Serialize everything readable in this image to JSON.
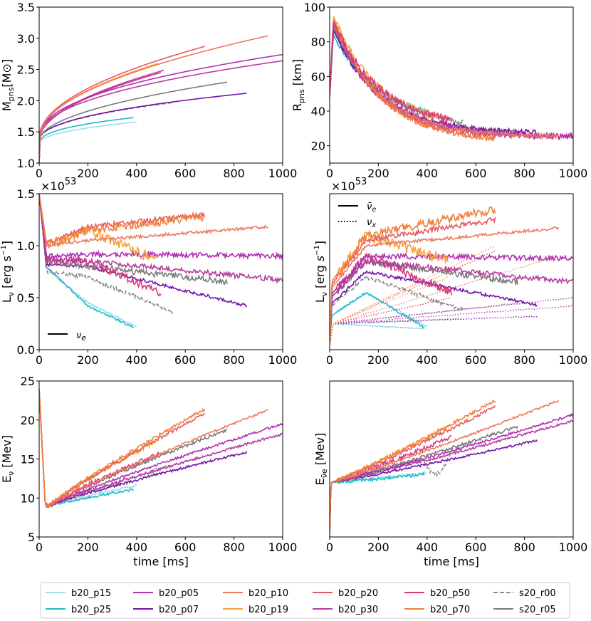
{
  "figure": {
    "palette": {
      "b20_p15": "#9fdcef",
      "b20_p25": "#1cbcc8",
      "b20_p05": "#b02fb2",
      "b20_p07": "#7312a8",
      "b20_p10": "#ee7a5e",
      "b20_p19": "#f6a33c",
      "b20_p20": "#e35b62",
      "b20_p30": "#b43da0",
      "b20_p50": "#d9367e",
      "b20_p70": "#f0803c",
      "s20_r00": "#8a8a8a",
      "s20_r05": "#7a7a7a"
    },
    "legend_entries": [
      {
        "label": "b20_p15",
        "style": "solid"
      },
      {
        "label": "b20_p25",
        "style": "solid"
      },
      {
        "label": "b20_p05",
        "style": "solid"
      },
      {
        "label": "b20_p07",
        "style": "solid"
      },
      {
        "label": "b20_p10",
        "style": "solid"
      },
      {
        "label": "b20_p19",
        "style": "solid"
      },
      {
        "label": "b20_p20",
        "style": "solid"
      },
      {
        "label": "b20_p30",
        "style": "solid"
      },
      {
        "label": "b20_p50",
        "style": "solid"
      },
      {
        "label": "b20_p70",
        "style": "solid"
      },
      {
        "label": "s20_r00",
        "style": "dashed"
      },
      {
        "label": "s20_r05",
        "style": "solid"
      }
    ]
  },
  "chart_data": [
    {
      "id": "mpns",
      "type": "line",
      "ylabel_main": "M",
      "ylabel_sub": "pns",
      "ylabel_tail": "[M",
      "ylabel_sym": "⊙",
      "ylabel_close": "]",
      "xlabel": "",
      "xlim": [
        0,
        1000
      ],
      "ylim": [
        1.0,
        3.5
      ],
      "xticks": [
        "0",
        "200",
        "400",
        "600",
        "800",
        "1000"
      ],
      "yticks": [
        "1.0",
        "1.5",
        "2.0",
        "2.5",
        "3.0",
        "3.5"
      ],
      "series": [
        {
          "name": "b20_p15",
          "end": 400,
          "start": 1.0,
          "jump": 1.3,
          "final": 1.66,
          "shape": 0.45,
          "noise": 0
        },
        {
          "name": "b20_p25",
          "end": 390,
          "start": 1.0,
          "jump": 1.3,
          "final": 1.73,
          "shape": 0.4,
          "noise": 0
        },
        {
          "name": "s20_r00",
          "end": 550,
          "start": 1.0,
          "jump": 1.35,
          "final": 1.97,
          "shape": 0.45,
          "noise": 0,
          "dashed": true
        },
        {
          "name": "b20_p07",
          "end": 855,
          "start": 1.0,
          "jump": 1.35,
          "final": 2.12,
          "shape": 0.45,
          "noise": 0
        },
        {
          "name": "s20_r05",
          "end": 775,
          "start": 1.0,
          "jump": 1.35,
          "final": 2.3,
          "shape": 0.5,
          "noise": 0
        },
        {
          "name": "b20_p30",
          "end": 515,
          "start": 1.0,
          "jump": 1.35,
          "final": 2.49,
          "shape": 0.5,
          "noise": 0
        },
        {
          "name": "b20_p50",
          "end": 500,
          "start": 1.0,
          "jump": 1.35,
          "final": 2.45,
          "shape": 0.5,
          "noise": 0
        },
        {
          "name": "b20_p19",
          "end": 490,
          "start": 1.0,
          "jump": 1.4,
          "final": 2.6,
          "shape": 0.5,
          "noise": 0
        },
        {
          "name": "b20_p20",
          "end": 680,
          "start": 1.0,
          "jump": 1.4,
          "final": 2.87,
          "shape": 0.5,
          "noise": 0
        },
        {
          "name": "b20_p05",
          "end": 1000,
          "start": 1.0,
          "jump": 1.4,
          "final": 2.74,
          "shape": 0.45,
          "noise": 0
        },
        {
          "name": "b20_p30",
          "end": 1000,
          "start": 1.0,
          "jump": 1.4,
          "final": 2.64,
          "shape": 0.45,
          "noise": 0
        },
        {
          "name": "b20_p10",
          "end": 940,
          "start": 1.0,
          "jump": 1.4,
          "final": 3.04,
          "shape": 0.5,
          "noise": 0
        }
      ]
    },
    {
      "id": "rpns",
      "type": "line",
      "ylabel_main": "R",
      "ylabel_sub": "pns",
      "ylabel_tail": " [km]",
      "xlabel": "",
      "xlim": [
        0,
        1000
      ],
      "ylim": [
        10,
        100
      ],
      "xticks": [
        "0",
        "200",
        "400",
        "600",
        "800",
        "1000"
      ],
      "yticks": [
        "20",
        "40",
        "60",
        "80",
        "100"
      ],
      "series": [
        {
          "name": "b20_p15",
          "end": 400,
          "peak": 86,
          "final": 33,
          "noise": 1.5
        },
        {
          "name": "b20_p25",
          "end": 390,
          "peak": 84,
          "final": 33,
          "noise": 1.5
        },
        {
          "name": "s20_r00",
          "end": 550,
          "peak": 88,
          "final": 30,
          "noise": 1.5
        },
        {
          "name": "s20_r05",
          "end": 775,
          "peak": 88,
          "final": 27,
          "noise": 1.5
        },
        {
          "name": "b20_p07",
          "end": 855,
          "peak": 87,
          "final": 27,
          "noise": 1.5
        },
        {
          "name": "b20_p05",
          "end": 1000,
          "peak": 92,
          "final": 25,
          "noise": 1.8
        },
        {
          "name": "b20_p30",
          "end": 1000,
          "peak": 90,
          "final": 25,
          "noise": 1.8
        },
        {
          "name": "b20_p10",
          "end": 940,
          "peak": 93,
          "final": 25,
          "noise": 1.5
        },
        {
          "name": "b20_p20",
          "end": 680,
          "peak": 92,
          "final": 23,
          "noise": 1.5
        },
        {
          "name": "b20_p70",
          "end": 680,
          "peak": 94,
          "final": 22,
          "noise": 1.5
        },
        {
          "name": "b20_p19",
          "end": 490,
          "peak": 95,
          "final": 30,
          "noise": 2
        },
        {
          "name": "b20_p50",
          "end": 500,
          "peak": 92,
          "final": 30,
          "noise": 2.5
        }
      ]
    },
    {
      "id": "lnue",
      "type": "line",
      "ylabel_main": "L",
      "ylabel_sub": "ν",
      "ylabel_tail": " [erg s",
      "ylabel_sup": "−1",
      "ylabel_close": "]",
      "offset_text": "×10",
      "offset_exp": "53",
      "xlabel": "",
      "xlim": [
        0,
        1000
      ],
      "ylim": [
        0.0,
        1.5
      ],
      "xticks": [
        "0",
        "200",
        "400",
        "600",
        "800",
        "1000"
      ],
      "yticks": [
        "0.0",
        "0.5",
        "1.0",
        "1.5"
      ],
      "legend_label": "ν",
      "legend_sub": "e",
      "series": [
        {
          "name": "b20_p15",
          "end": 400,
          "v30": 0.78,
          "v200": 0.45,
          "final": 0.22,
          "noise": 0.01
        },
        {
          "name": "b20_p25",
          "end": 390,
          "v30": 0.8,
          "v200": 0.42,
          "final": 0.21,
          "noise": 0.01
        },
        {
          "name": "s20_r00",
          "end": 550,
          "v30": 0.75,
          "v200": 0.7,
          "final": 0.36,
          "noise": 0.02,
          "dashed": true
        },
        {
          "name": "b20_p07",
          "end": 855,
          "v30": 0.82,
          "v200": 0.8,
          "final": 0.42,
          "noise": 0.015
        },
        {
          "name": "s20_r05",
          "end": 775,
          "v30": 0.85,
          "v200": 0.8,
          "final": 0.65,
          "noise": 0.03
        },
        {
          "name": "b20_p50",
          "end": 500,
          "v30": 0.85,
          "v200": 0.85,
          "final": 0.55,
          "noise": 0.04
        },
        {
          "name": "b20_p30",
          "end": 1000,
          "v30": 0.88,
          "v200": 0.85,
          "final": 0.67,
          "noise": 0.025
        },
        {
          "name": "b20_p05",
          "end": 1000,
          "v30": 0.9,
          "v200": 0.92,
          "final": 0.9,
          "noise": 0.025
        },
        {
          "name": "b20_p19",
          "end": 490,
          "v30": 1.0,
          "v200": 1.15,
          "final": 0.85,
          "noise": 0.05
        },
        {
          "name": "b20_p10",
          "end": 940,
          "v30": 1.0,
          "v200": 1.05,
          "final": 1.18,
          "noise": 0.015
        },
        {
          "name": "b20_p20",
          "end": 680,
          "v30": 1.02,
          "v200": 1.18,
          "final": 1.3,
          "noise": 0.025
        },
        {
          "name": "b20_p70",
          "end": 680,
          "v30": 1.0,
          "v200": 1.15,
          "final": 1.28,
          "noise": 0.04
        }
      ]
    },
    {
      "id": "lnuebar",
      "type": "line",
      "ylabel_main": "L",
      "ylabel_sub": "ν",
      "ylabel_tail": " [erg ",
      "ylabel_s": "s",
      "ylabel_sup": "−1",
      "ylabel_close": "]",
      "offset_text": "×10",
      "offset_exp": "53",
      "xlabel": "",
      "xlim": [
        0,
        1000
      ],
      "ylim": [
        0.0,
        1.5
      ],
      "xticks": [
        "0",
        "200",
        "400",
        "600",
        "800",
        "1000"
      ],
      "legend_solid_label": "ν̄",
      "legend_solid_sub": "e",
      "legend_dotted_label": "ν",
      "legend_dotted_sub": "x",
      "series": [
        {
          "name": "b20_p15",
          "end": 400,
          "peak": 0.55,
          "final": 0.22,
          "xfinal": 0.2,
          "noise": 0.01
        },
        {
          "name": "b20_p25",
          "end": 390,
          "peak": 0.55,
          "final": 0.21,
          "xfinal": 0.2,
          "noise": 0.01
        },
        {
          "name": "s20_r00",
          "end": 550,
          "peak": 0.7,
          "final": 0.38,
          "xfinal": 0.3,
          "noise": 0.02,
          "dashed": true
        },
        {
          "name": "b20_p07",
          "end": 855,
          "peak": 0.75,
          "final": 0.43,
          "xfinal": 0.32,
          "noise": 0.015
        },
        {
          "name": "s20_r05",
          "end": 775,
          "peak": 0.85,
          "final": 0.65,
          "xfinal": 0.45,
          "noise": 0.03
        },
        {
          "name": "b20_p50",
          "end": 500,
          "peak": 0.9,
          "final": 0.55,
          "xfinal": 0.5,
          "noise": 0.04
        },
        {
          "name": "b20_p30",
          "end": 1000,
          "peak": 0.85,
          "final": 0.65,
          "xfinal": 0.42,
          "noise": 0.025
        },
        {
          "name": "b20_p05",
          "end": 1000,
          "peak": 0.9,
          "final": 0.88,
          "xfinal": 0.5,
          "noise": 0.025
        },
        {
          "name": "b20_p19",
          "end": 490,
          "peak": 1.1,
          "final": 0.85,
          "xfinal": 0.7,
          "noise": 0.05
        },
        {
          "name": "b20_p10",
          "end": 940,
          "peak": 1.0,
          "final": 1.17,
          "xfinal": 0.9,
          "noise": 0.015
        },
        {
          "name": "b20_p20",
          "end": 680,
          "peak": 1.05,
          "final": 1.25,
          "xfinal": 0.95,
          "noise": 0.025
        },
        {
          "name": "b20_p70",
          "end": 680,
          "peak": 1.1,
          "final": 1.35,
          "xfinal": 1.0,
          "noise": 0.04
        }
      ]
    },
    {
      "id": "enue",
      "type": "line",
      "ylabel_main": "E",
      "ylabel_sub": "ν",
      "ylabel_tail": " [Mev]",
      "xlabel": "time [ms]",
      "xlim": [
        0,
        1000
      ],
      "ylim": [
        5,
        25
      ],
      "xticks": [
        "0",
        "200",
        "400",
        "600",
        "800",
        "1000"
      ],
      "yticks": [
        "5",
        "10",
        "15",
        "20",
        "25"
      ],
      "series": [
        {
          "name": "b20_p15",
          "end": 400,
          "final": 11.6,
          "noise": 0.15
        },
        {
          "name": "b20_p25",
          "end": 390,
          "final": 11.1,
          "noise": 0.15
        },
        {
          "name": "s20_r00",
          "end": 550,
          "final": 14.2,
          "noise": 0.25,
          "dashed": true
        },
        {
          "name": "b20_p07",
          "end": 855,
          "final": 15.9,
          "noise": 0.15
        },
        {
          "name": "s20_r05",
          "end": 775,
          "final": 18.8,
          "noise": 0.2
        },
        {
          "name": "b20_p50",
          "end": 500,
          "final": 15.8,
          "noise": 0.3
        },
        {
          "name": "b20_p30",
          "end": 1000,
          "final": 18.2,
          "noise": 0.15
        },
        {
          "name": "b20_p05",
          "end": 1000,
          "final": 19.5,
          "noise": 0.15
        },
        {
          "name": "b20_p19",
          "end": 490,
          "final": 17.5,
          "noise": 0.3
        },
        {
          "name": "b20_p10",
          "end": 940,
          "final": 21.3,
          "noise": 0.15
        },
        {
          "name": "b20_p20",
          "end": 680,
          "final": 20.8,
          "noise": 0.2
        },
        {
          "name": "b20_p70",
          "end": 680,
          "final": 21.4,
          "noise": 0.2
        }
      ]
    },
    {
      "id": "enuebar",
      "type": "line",
      "ylabel_main": "E",
      "ylabel_sub": "ν̄e",
      "ylabel_tail": " [Mev]",
      "xlabel": "time [ms]",
      "xlim": [
        0,
        1000
      ],
      "ylim": [
        5,
        25
      ],
      "xticks": [
        "0",
        "200",
        "400",
        "600",
        "800",
        "1000"
      ],
      "series": [
        {
          "name": "b20_p15",
          "end": 400,
          "final": 13.2,
          "noise": 0.2
        },
        {
          "name": "b20_p25",
          "end": 390,
          "final": 13.0,
          "noise": 0.2
        },
        {
          "name": "s20_r00",
          "end": 550,
          "final": 16.6,
          "noise": 0.3,
          "dashed": true,
          "dip": true
        },
        {
          "name": "b20_p07",
          "end": 855,
          "final": 17.4,
          "noise": 0.15
        },
        {
          "name": "s20_r05",
          "end": 775,
          "final": 19.2,
          "noise": 0.2
        },
        {
          "name": "b20_p50",
          "end": 500,
          "final": 17.8,
          "noise": 0.3
        },
        {
          "name": "b20_p30",
          "end": 1000,
          "final": 19.9,
          "noise": 0.15
        },
        {
          "name": "b20_p05",
          "end": 1000,
          "final": 20.7,
          "noise": 0.15
        },
        {
          "name": "b20_p19",
          "end": 490,
          "final": 19.2,
          "noise": 0.3
        },
        {
          "name": "b20_p10",
          "end": 940,
          "final": 22.5,
          "noise": 0.15
        },
        {
          "name": "b20_p20",
          "end": 680,
          "final": 21.7,
          "noise": 0.2
        },
        {
          "name": "b20_p70",
          "end": 680,
          "final": 22.5,
          "noise": 0.2
        }
      ]
    }
  ]
}
